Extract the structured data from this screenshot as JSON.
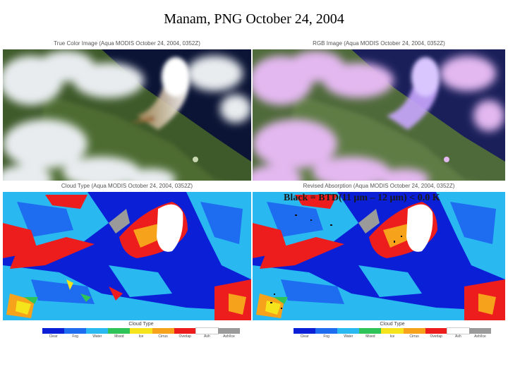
{
  "title": "Manam, PNG October 24, 2004",
  "panels": {
    "true_color": {
      "caption": "True Color Image (Aqua MODIS October 24, 2004, 0352Z)"
    },
    "rgb": {
      "caption": "RGB Image (Aqua MODIS October 24, 2004, 0352Z)"
    },
    "cloud_type": {
      "caption": "Cloud Type (Aqua MODIS October 24, 2004, 0352Z)"
    },
    "revised_absorption": {
      "caption": "Revised Absorption (Aqua MODIS October 24, 2004, 0352Z)"
    }
  },
  "overlay_text": "Black = BTD(11 μm – 12 μm) < 0.0 K",
  "legend": {
    "title": "Cloud Type",
    "items": [
      {
        "label": "Clear",
        "color": "#0a1fd6"
      },
      {
        "label": "Fog",
        "color": "#1e6cf0"
      },
      {
        "label": "Water",
        "color": "#29b8ef"
      },
      {
        "label": "Mixed",
        "color": "#2ec45a"
      },
      {
        "label": "Ice",
        "color": "#f5e31b"
      },
      {
        "label": "Cirrus",
        "color": "#f7a21b"
      },
      {
        "label": "Overlap",
        "color": "#ee1d1d"
      },
      {
        "label": "Ash",
        "color": "#ffffff"
      },
      {
        "label": "Ash/Ice",
        "color": "#9a9a9a"
      }
    ]
  }
}
